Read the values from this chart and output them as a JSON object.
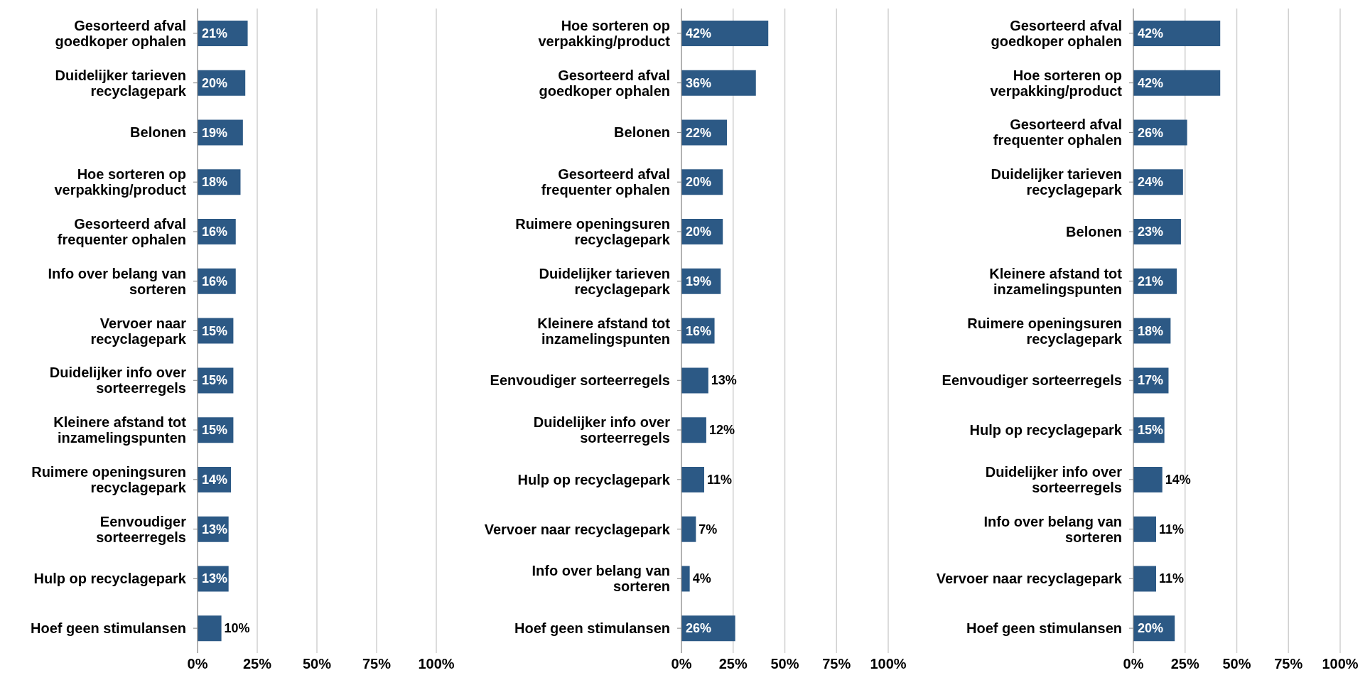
{
  "chart_data": [
    {
      "type": "bar",
      "orientation": "horizontal",
      "color": "#2c5985",
      "grid": "x",
      "xlim": [
        0,
        100
      ],
      "xticks": [
        {
          "value": 0,
          "label": "0%"
        },
        {
          "value": 25,
          "label": "25%"
        },
        {
          "value": 50,
          "label": "50%"
        },
        {
          "value": 75,
          "label": "75%"
        },
        {
          "value": 100,
          "label": "100%"
        }
      ],
      "categories": [
        "Gesorteerd afval goedkoper ophalen",
        "Duidelijker tarieven recyclagepark",
        "Belonen",
        "Hoe sorteren op verpakking/product",
        "Gesorteerd afval frequenter ophalen",
        "Info over belang van sorteren",
        "Vervoer naar recyclagepark",
        "Duidelijker info over sorteerregels",
        "Kleinere afstand tot inzamelingspunten",
        "Ruimere openingsuren recyclagepark",
        "Eenvoudiger sorteerregels",
        "Hulp op recyclagepark",
        "Hoef geen stimulansen"
      ],
      "values": [
        21,
        20,
        19,
        18,
        16,
        16,
        15,
        15,
        15,
        14,
        13,
        13,
        10
      ],
      "value_labels": [
        "21%",
        "20%",
        "19%",
        "18%",
        "16%",
        "16%",
        "15%",
        "15%",
        "15%",
        "14%",
        "13%",
        "13%",
        "10%"
      ]
    },
    {
      "type": "bar",
      "orientation": "horizontal",
      "color": "#2c5985",
      "grid": "x",
      "xlim": [
        0,
        100
      ],
      "xticks": [
        {
          "value": 0,
          "label": "0%"
        },
        {
          "value": 25,
          "label": "25%"
        },
        {
          "value": 50,
          "label": "50%"
        },
        {
          "value": 75,
          "label": "75%"
        },
        {
          "value": 100,
          "label": "100%"
        }
      ],
      "categories": [
        "Hoe sorteren op verpakking/product",
        "Gesorteerd afval goedkoper ophalen",
        "Belonen",
        "Gesorteerd afval frequenter ophalen",
        "Ruimere openingsuren recyclagepark",
        "Duidelijker tarieven recyclagepark",
        "Kleinere afstand tot inzamelingspunten",
        "Eenvoudiger sorteerregels",
        "Duidelijker info over sorteerregels",
        "Hulp op recyclagepark",
        "Vervoer naar recyclagepark",
        "Info over belang van sorteren",
        "Hoef geen stimulansen"
      ],
      "values": [
        42,
        36,
        22,
        20,
        20,
        19,
        16,
        13,
        12,
        11,
        7,
        4,
        26
      ],
      "value_labels": [
        "42%",
        "36%",
        "22%",
        "20%",
        "20%",
        "19%",
        "16%",
        "13%",
        "12%",
        "11%",
        "7%",
        "4%",
        "26%"
      ]
    },
    {
      "type": "bar",
      "orientation": "horizontal",
      "color": "#2c5985",
      "grid": "x",
      "xlim": [
        0,
        100
      ],
      "xticks": [
        {
          "value": 0,
          "label": "0%"
        },
        {
          "value": 25,
          "label": "25%"
        },
        {
          "value": 50,
          "label": "50%"
        },
        {
          "value": 75,
          "label": "75%"
        },
        {
          "value": 100,
          "label": "100%"
        }
      ],
      "categories": [
        "Gesorteerd afval goedkoper ophalen",
        "Hoe sorteren op verpakking/product",
        "Gesorteerd afval frequenter ophalen",
        "Duidelijker tarieven recyclagepark",
        "Belonen",
        "Kleinere afstand tot inzamelingspunten",
        "Ruimere openingsuren recyclagepark",
        "Eenvoudiger sorteerregels",
        "Hulp op recyclagepark",
        "Duidelijker info over sorteerregels",
        "Info over belang van sorteren",
        "Vervoer naar recyclagepark",
        "Hoef geen stimulansen"
      ],
      "values": [
        42,
        42,
        26,
        24,
        23,
        21,
        18,
        17,
        15,
        14,
        11,
        11,
        20
      ],
      "value_labels": [
        "42%",
        "42%",
        "26%",
        "24%",
        "23%",
        "21%",
        "18%",
        "17%",
        "15%",
        "14%",
        "11%",
        "11%",
        "20%"
      ]
    }
  ]
}
